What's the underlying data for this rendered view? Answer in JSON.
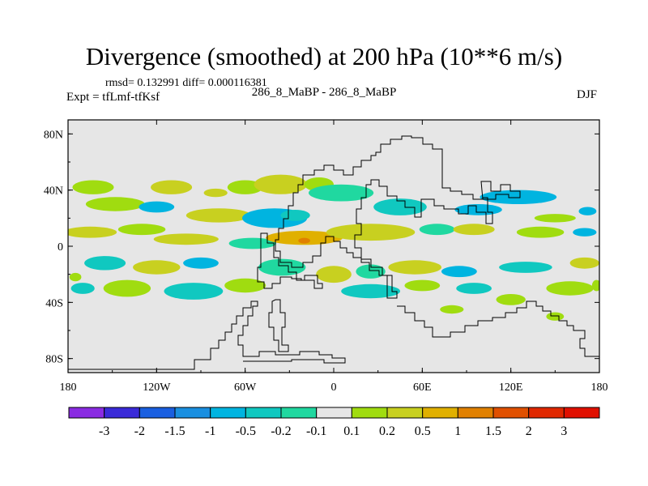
{
  "title": "Divergence (smoothed) at 200 hPa (10**6 m/s)",
  "stats": "rmsd= 0.132991 diff= 0.000116381",
  "expt": "Expt = tfLmf-tfKsf",
  "runs": "286_8_MaBP - 286_8_MaBP",
  "season": "DJF",
  "chart_data": {
    "type": "heatmap",
    "title": "Divergence (smoothed) at 200 hPa (10**6 m/s)",
    "xlabel": "",
    "ylabel": "",
    "xlim": [
      -180,
      180
    ],
    "ylim": [
      -90,
      90
    ],
    "x_ticks": [
      {
        "value": -180,
        "label": "180"
      },
      {
        "value": -120,
        "label": "120W"
      },
      {
        "value": -60,
        "label": "60W"
      },
      {
        "value": 0,
        "label": "0"
      },
      {
        "value": 60,
        "label": "60E"
      },
      {
        "value": 120,
        "label": "120E"
      },
      {
        "value": 180,
        "label": "180"
      }
    ],
    "y_ticks": [
      {
        "value": 80,
        "label": "80N"
      },
      {
        "value": 40,
        "label": "40N"
      },
      {
        "value": 0,
        "label": "0"
      },
      {
        "value": -40,
        "label": "40S"
      },
      {
        "value": -80,
        "label": "80S"
      }
    ],
    "levels": [
      "-3",
      "-2",
      "-1.5",
      "-1",
      "-0.5",
      "-0.2",
      "-0.1",
      "0.1",
      "0.2",
      "0.5",
      "1",
      "1.5",
      "2",
      "3"
    ],
    "colors": [
      "#8a2be2",
      "#3a2ad8",
      "#1a5fe0",
      "#1a8fe0",
      "#00b4e0",
      "#10c8c0",
      "#20d8a0",
      "#e6e6e6",
      "#a0dc10",
      "#c8d020",
      "#e0b000",
      "#e08000",
      "#e05000",
      "#e01000"
    ],
    "background_color": "#e6e6e6",
    "blobs": [
      {
        "lon": -163,
        "lat": 42,
        "rlon": 14,
        "rlat": 5,
        "level": 8
      },
      {
        "lon": -148,
        "lat": 30,
        "rlon": 20,
        "rlat": 5,
        "level": 8
      },
      {
        "lon": -110,
        "lat": 42,
        "rlon": 14,
        "rlat": 5,
        "level": 9
      },
      {
        "lon": -80,
        "lat": 38,
        "rlon": 8,
        "rlat": 3,
        "level": 9
      },
      {
        "lon": -60,
        "lat": 42,
        "rlon": 12,
        "rlat": 5,
        "level": 8
      },
      {
        "lon": -36,
        "lat": 44,
        "rlon": 18,
        "rlat": 7,
        "level": 9
      },
      {
        "lon": -10,
        "lat": 44,
        "rlon": 10,
        "rlat": 5,
        "level": 8
      },
      {
        "lon": -120,
        "lat": 28,
        "rlon": 12,
        "rlat": 4,
        "level": 4
      },
      {
        "lon": -78,
        "lat": 22,
        "rlon": 22,
        "rlat": 5,
        "level": 9
      },
      {
        "lon": -40,
        "lat": 20,
        "rlon": 22,
        "rlat": 7,
        "level": 4
      },
      {
        "lon": -26,
        "lat": 22,
        "rlon": 10,
        "rlat": 4,
        "level": 5
      },
      {
        "lon": 5,
        "lat": 38,
        "rlon": 22,
        "rlat": 6,
        "level": 6
      },
      {
        "lon": 45,
        "lat": 28,
        "rlon": 18,
        "rlat": 6,
        "level": 5
      },
      {
        "lon": 98,
        "lat": 26,
        "rlon": 16,
        "rlat": 4,
        "level": 4
      },
      {
        "lon": 125,
        "lat": 35,
        "rlon": 26,
        "rlat": 5,
        "level": 4
      },
      {
        "lon": 150,
        "lat": 20,
        "rlon": 14,
        "rlat": 3,
        "level": 8
      },
      {
        "lon": 172,
        "lat": 25,
        "rlon": 6,
        "rlat": 3,
        "level": 4
      },
      {
        "lon": -165,
        "lat": 10,
        "rlon": 18,
        "rlat": 4,
        "level": 9
      },
      {
        "lon": -130,
        "lat": 12,
        "rlon": 16,
        "rlat": 4,
        "level": 8
      },
      {
        "lon": -100,
        "lat": 5,
        "rlon": 22,
        "rlat": 4,
        "level": 9
      },
      {
        "lon": -55,
        "lat": 2,
        "rlon": 16,
        "rlat": 4,
        "level": 6
      },
      {
        "lon": -20,
        "lat": 6,
        "rlon": 26,
        "rlat": 5,
        "level": 10
      },
      {
        "lon": 25,
        "lat": 10,
        "rlon": 30,
        "rlat": 6,
        "level": 9
      },
      {
        "lon": 70,
        "lat": 12,
        "rlon": 12,
        "rlat": 4,
        "level": 6
      },
      {
        "lon": 95,
        "lat": 12,
        "rlon": 14,
        "rlat": 4,
        "level": 9
      },
      {
        "lon": 140,
        "lat": 10,
        "rlon": 16,
        "rlat": 4,
        "level": 8
      },
      {
        "lon": 170,
        "lat": 10,
        "rlon": 8,
        "rlat": 3,
        "level": 4
      },
      {
        "lon": -155,
        "lat": -12,
        "rlon": 14,
        "rlat": 5,
        "level": 5
      },
      {
        "lon": -120,
        "lat": -15,
        "rlon": 16,
        "rlat": 5,
        "level": 9
      },
      {
        "lon": -90,
        "lat": -12,
        "rlon": 12,
        "rlat": 4,
        "level": 4
      },
      {
        "lon": -35,
        "lat": -15,
        "rlon": 16,
        "rlat": 6,
        "level": 6
      },
      {
        "lon": 0,
        "lat": -20,
        "rlon": 12,
        "rlat": 6,
        "level": 9
      },
      {
        "lon": 25,
        "lat": -18,
        "rlon": 10,
        "rlat": 5,
        "level": 6
      },
      {
        "lon": 55,
        "lat": -15,
        "rlon": 18,
        "rlat": 5,
        "level": 9
      },
      {
        "lon": 85,
        "lat": -18,
        "rlon": 12,
        "rlat": 4,
        "level": 4
      },
      {
        "lon": 130,
        "lat": -15,
        "rlon": 18,
        "rlat": 4,
        "level": 5
      },
      {
        "lon": 170,
        "lat": -12,
        "rlon": 10,
        "rlat": 4,
        "level": 9
      },
      {
        "lon": -170,
        "lat": -30,
        "rlon": 8,
        "rlat": 4,
        "level": 5
      },
      {
        "lon": -140,
        "lat": -30,
        "rlon": 16,
        "rlat": 6,
        "level": 8
      },
      {
        "lon": -95,
        "lat": -32,
        "rlon": 20,
        "rlat": 6,
        "level": 5
      },
      {
        "lon": -60,
        "lat": -28,
        "rlon": 14,
        "rlat": 5,
        "level": 8
      },
      {
        "lon": 25,
        "lat": -32,
        "rlon": 20,
        "rlat": 5,
        "level": 5
      },
      {
        "lon": 60,
        "lat": -28,
        "rlon": 12,
        "rlat": 4,
        "level": 8
      },
      {
        "lon": 95,
        "lat": -30,
        "rlon": 12,
        "rlat": 4,
        "level": 5
      },
      {
        "lon": 120,
        "lat": -38,
        "rlon": 10,
        "rlat": 4,
        "level": 8
      },
      {
        "lon": 160,
        "lat": -30,
        "rlon": 16,
        "rlat": 5,
        "level": 8
      },
      {
        "lon": -175,
        "lat": -22,
        "rlon": 4,
        "rlat": 3,
        "level": 8
      },
      {
        "lon": 178,
        "lat": -28,
        "rlon": 3,
        "rlat": 4,
        "level": 8
      },
      {
        "lon": 80,
        "lat": -45,
        "rlon": 8,
        "rlat": 3,
        "level": 8
      },
      {
        "lon": 150,
        "lat": -50,
        "rlon": 6,
        "rlat": 3,
        "level": 8
      },
      {
        "lon": -20,
        "lat": 4,
        "rlon": 4,
        "rlat": 2,
        "level": 11
      }
    ]
  }
}
